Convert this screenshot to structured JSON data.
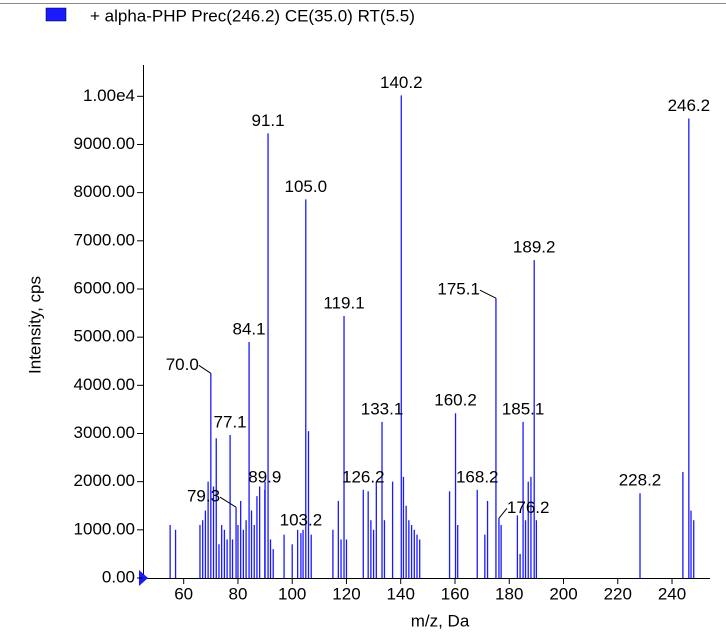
{
  "chart_data": {
    "type": "bar",
    "legend": "+ alpha-PHP Prec(246.2) CE(35.0) RT(5.5)",
    "color": "#1a1aff",
    "xlabel": "m/z, Da",
    "ylabel": "Intensity, cps",
    "xlim": [
      45,
      254
    ],
    "ylim": [
      0,
      10650
    ],
    "xticks": [
      60,
      80,
      100,
      120,
      140,
      160,
      180,
      200,
      220,
      240
    ],
    "yticks": [
      {
        "value": 0,
        "label": "0.00"
      },
      {
        "value": 1000,
        "label": "1000.00"
      },
      {
        "value": 2000,
        "label": "2000.00"
      },
      {
        "value": 3000,
        "label": "3000.00"
      },
      {
        "value": 4000,
        "label": "4000.00"
      },
      {
        "value": 5000,
        "label": "5000.00"
      },
      {
        "value": 6000,
        "label": "6000.00"
      },
      {
        "value": 7000,
        "label": "7000.00"
      },
      {
        "value": 8000,
        "label": "8000.00"
      },
      {
        "value": 9000,
        "label": "9000.00"
      },
      {
        "value": 10000,
        "label": "1.00e4"
      }
    ],
    "x": [
      55,
      57,
      66,
      67,
      68,
      69,
      70.0,
      71,
      72,
      73,
      74,
      75,
      76,
      77.1,
      78,
      79.3,
      80,
      81,
      82,
      83,
      84.1,
      85,
      86,
      87,
      88,
      89.9,
      90,
      91.1,
      92,
      93,
      97,
      100,
      102,
      103.2,
      104,
      105.0,
      106,
      107,
      115,
      117,
      118,
      119.1,
      120,
      126.2,
      128,
      129,
      130,
      131,
      133.1,
      134,
      137,
      140.2,
      141,
      142,
      143,
      144,
      145,
      146,
      147,
      158,
      160.2,
      161,
      168.2,
      171,
      172,
      175.1,
      176.2,
      177,
      183,
      184,
      185.1,
      186,
      187,
      188,
      189.2,
      190,
      228.2,
      244,
      246.2,
      247,
      248
    ],
    "values": [
      1100,
      1000,
      1100,
      1200,
      1400,
      2000,
      4250,
      1900,
      2900,
      700,
      1100,
      1000,
      800,
      2970,
      800,
      1470,
      1100,
      1600,
      1000,
      1200,
      4900,
      1400,
      1100,
      1700,
      1900,
      1830,
      2000,
      9230,
      800,
      600,
      900,
      700,
      1000,
      930,
      1000,
      7860,
      3050,
      900,
      1000,
      1600,
      800,
      5440,
      800,
      1830,
      1800,
      1200,
      1000,
      2000,
      3240,
      1200,
      2000,
      10020,
      2100,
      1500,
      1200,
      1100,
      1000,
      900,
      800,
      1800,
      3420,
      1100,
      1830,
      900,
      1600,
      5810,
      1240,
      1100,
      1300,
      500,
      3240,
      1200,
      2000,
      2100,
      6600,
      1200,
      1760,
      2200,
      9540,
      1400,
      1200
    ],
    "annotations": [
      {
        "text": "70.0",
        "x": 70.0
      },
      {
        "text": "77.1",
        "x": 77.1
      },
      {
        "text": "79.3",
        "x": 79.3
      },
      {
        "text": "84.1",
        "x": 84.1
      },
      {
        "text": "89.9",
        "x": 89.9
      },
      {
        "text": "91.1",
        "x": 91.1
      },
      {
        "text": "103.2",
        "x": 103.2
      },
      {
        "text": "105.0",
        "x": 105.0
      },
      {
        "text": "119.1",
        "x": 119.1
      },
      {
        "text": "126.2",
        "x": 126.2
      },
      {
        "text": "133.1",
        "x": 133.1
      },
      {
        "text": "140.2",
        "x": 140.2
      },
      {
        "text": "160.2",
        "x": 160.2
      },
      {
        "text": "168.2",
        "x": 168.2
      },
      {
        "text": "175.1",
        "x": 175.1
      },
      {
        "text": "176.2",
        "x": 176.2
      },
      {
        "text": "185.1",
        "x": 185.1
      },
      {
        "text": "189.2",
        "x": 189.2
      },
      {
        "text": "228.2",
        "x": 228.2
      },
      {
        "text": "246.2",
        "x": 246.2
      }
    ]
  }
}
